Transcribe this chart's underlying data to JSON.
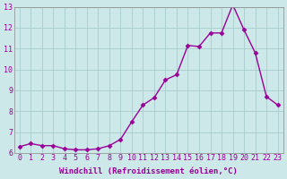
{
  "x": [
    0,
    1,
    2,
    3,
    4,
    5,
    6,
    7,
    8,
    9,
    10,
    11,
    12,
    13,
    14,
    15,
    16,
    17,
    18,
    19,
    20,
    21,
    22,
    23
  ],
  "y": [
    6.3,
    6.45,
    6.35,
    6.35,
    6.2,
    6.15,
    6.15,
    6.2,
    6.35,
    6.65,
    7.5,
    8.3,
    8.65,
    9.5,
    9.75,
    11.15,
    11.1,
    11.75,
    11.75,
    13.1,
    11.9,
    10.8,
    8.7,
    8.3
  ],
  "xlabel": "Windchill (Refroidissement éolien,°C)",
  "ylim": [
    6,
    13
  ],
  "xlim_min": -0.5,
  "xlim_max": 23.5,
  "yticks": [
    6,
    7,
    8,
    9,
    10,
    11,
    12,
    13
  ],
  "xticks": [
    0,
    1,
    2,
    3,
    4,
    5,
    6,
    7,
    8,
    9,
    10,
    11,
    12,
    13,
    14,
    15,
    16,
    17,
    18,
    19,
    20,
    21,
    22,
    23
  ],
  "line_color": "#990099",
  "marker": "D",
  "marker_size": 2.5,
  "bg_color": "#cce8e8",
  "grid_color": "#aacccc",
  "xlabel_fontsize": 6.5,
  "tick_fontsize": 6.0,
  "linewidth": 1.0
}
